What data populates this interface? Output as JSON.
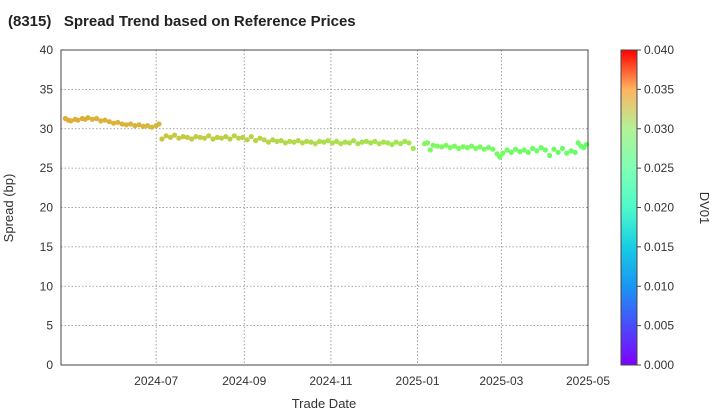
{
  "chart_data": {
    "type": "scatter",
    "title": "(8315)   Spread Trend based on Reference Prices",
    "xlabel": "Trade Date",
    "ylabel": "Spread (bp)",
    "colorbar_label": "DV01",
    "ylim": [
      0,
      40
    ],
    "yticks": [
      "0",
      "5",
      "10",
      "15",
      "20",
      "25",
      "30",
      "35",
      "40"
    ],
    "xrange": [
      "2024-04-25",
      "2025-05-01"
    ],
    "xticks": [
      "2024-07",
      "2024-09",
      "2024-11",
      "2025-01",
      "2025-03",
      "2025-05"
    ],
    "colorbar_range": [
      0.0,
      0.04
    ],
    "colorbar_ticks": [
      "0.000",
      "0.005",
      "0.010",
      "0.015",
      "0.020",
      "0.025",
      "0.030",
      "0.035",
      "0.040"
    ],
    "grid": true,
    "series": [
      {
        "name": "Spread",
        "points": [
          [
            "2024-04-28",
            31.3,
            0.0305
          ],
          [
            "2024-04-30",
            31.1,
            0.0305
          ],
          [
            "2024-05-02",
            31.0,
            0.0305
          ],
          [
            "2024-05-05",
            31.2,
            0.0305
          ],
          [
            "2024-05-07",
            31.1,
            0.0304
          ],
          [
            "2024-05-10",
            31.3,
            0.0304
          ],
          [
            "2024-05-12",
            31.2,
            0.0304
          ],
          [
            "2024-05-14",
            31.4,
            0.0304
          ],
          [
            "2024-05-17",
            31.2,
            0.0303
          ],
          [
            "2024-05-20",
            31.3,
            0.0303
          ],
          [
            "2024-05-23",
            31.0,
            0.0303
          ],
          [
            "2024-05-26",
            31.1,
            0.0302
          ],
          [
            "2024-05-29",
            30.9,
            0.0302
          ],
          [
            "2024-06-01",
            30.7,
            0.0302
          ],
          [
            "2024-06-04",
            30.8,
            0.0301
          ],
          [
            "2024-06-07",
            30.6,
            0.0301
          ],
          [
            "2024-06-10",
            30.5,
            0.0301
          ],
          [
            "2024-06-13",
            30.6,
            0.03
          ],
          [
            "2024-06-16",
            30.4,
            0.03
          ],
          [
            "2024-06-19",
            30.5,
            0.03
          ],
          [
            "2024-06-22",
            30.3,
            0.0299
          ],
          [
            "2024-06-25",
            30.4,
            0.0299
          ],
          [
            "2024-06-28",
            30.2,
            0.0299
          ],
          [
            "2024-07-01",
            30.4,
            0.0298
          ],
          [
            "2024-07-03",
            30.6,
            0.0298
          ],
          [
            "2024-07-05",
            28.7,
            0.0286
          ],
          [
            "2024-07-08",
            29.1,
            0.0286
          ],
          [
            "2024-07-11",
            28.9,
            0.0285
          ],
          [
            "2024-07-14",
            29.2,
            0.0285
          ],
          [
            "2024-07-17",
            28.8,
            0.0284
          ],
          [
            "2024-07-20",
            29.0,
            0.0284
          ],
          [
            "2024-07-23",
            28.9,
            0.0283
          ],
          [
            "2024-07-26",
            28.7,
            0.0283
          ],
          [
            "2024-07-29",
            29.0,
            0.0282
          ],
          [
            "2024-08-01",
            28.9,
            0.0282
          ],
          [
            "2024-08-04",
            28.8,
            0.0281
          ],
          [
            "2024-08-07",
            29.1,
            0.0281
          ],
          [
            "2024-08-10",
            28.7,
            0.028
          ],
          [
            "2024-08-13",
            28.9,
            0.028
          ],
          [
            "2024-08-16",
            28.8,
            0.0279
          ],
          [
            "2024-08-19",
            29.0,
            0.0279
          ],
          [
            "2024-08-22",
            28.7,
            0.0278
          ],
          [
            "2024-08-25",
            29.1,
            0.0278
          ],
          [
            "2024-08-28",
            28.8,
            0.0277
          ],
          [
            "2024-08-31",
            28.9,
            0.0277
          ],
          [
            "2024-09-03",
            28.6,
            0.0276
          ],
          [
            "2024-09-06",
            29.0,
            0.0276
          ],
          [
            "2024-09-09",
            28.5,
            0.0275
          ],
          [
            "2024-09-12",
            28.8,
            0.0275
          ],
          [
            "2024-09-15",
            28.6,
            0.0274
          ],
          [
            "2024-09-18",
            28.3,
            0.0274
          ],
          [
            "2024-09-21",
            28.6,
            0.0273
          ],
          [
            "2024-09-24",
            28.4,
            0.0273
          ],
          [
            "2024-09-27",
            28.5,
            0.0272
          ],
          [
            "2024-09-30",
            28.2,
            0.0272
          ],
          [
            "2024-10-03",
            28.4,
            0.0271
          ],
          [
            "2024-10-06",
            28.3,
            0.0271
          ],
          [
            "2024-10-09",
            28.5,
            0.027
          ],
          [
            "2024-10-12",
            28.2,
            0.027
          ],
          [
            "2024-10-15",
            28.4,
            0.0269
          ],
          [
            "2024-10-18",
            28.3,
            0.0269
          ],
          [
            "2024-10-21",
            28.1,
            0.0268
          ],
          [
            "2024-10-24",
            28.4,
            0.0268
          ],
          [
            "2024-10-27",
            28.3,
            0.0267
          ],
          [
            "2024-10-30",
            28.5,
            0.0267
          ],
          [
            "2024-11-02",
            28.2,
            0.0266
          ],
          [
            "2024-11-05",
            28.4,
            0.0266
          ],
          [
            "2024-11-08",
            28.1,
            0.0265
          ],
          [
            "2024-11-11",
            28.3,
            0.0265
          ],
          [
            "2024-11-14",
            28.2,
            0.0264
          ],
          [
            "2024-11-17",
            28.5,
            0.0264
          ],
          [
            "2024-11-20",
            28.1,
            0.0263
          ],
          [
            "2024-11-23",
            28.3,
            0.0263
          ],
          [
            "2024-11-26",
            28.4,
            0.0262
          ],
          [
            "2024-11-29",
            28.2,
            0.0262
          ],
          [
            "2024-12-02",
            28.4,
            0.0261
          ],
          [
            "2024-12-05",
            28.1,
            0.0261
          ],
          [
            "2024-12-08",
            28.3,
            0.026
          ],
          [
            "2024-12-11",
            28.2,
            0.026
          ],
          [
            "2024-12-14",
            28.0,
            0.0259
          ],
          [
            "2024-12-17",
            28.3,
            0.0259
          ],
          [
            "2024-12-20",
            28.1,
            0.0258
          ],
          [
            "2024-12-23",
            28.4,
            0.0258
          ],
          [
            "2024-12-26",
            28.2,
            0.0257
          ],
          [
            "2024-12-29",
            27.5,
            0.0257
          ],
          [
            "2025-01-06",
            28.1,
            0.023
          ],
          [
            "2025-01-08",
            28.2,
            0.023
          ],
          [
            "2025-01-10",
            27.3,
            0.0229
          ],
          [
            "2025-01-12",
            27.9,
            0.0229
          ],
          [
            "2025-01-15",
            27.8,
            0.0228
          ],
          [
            "2025-01-18",
            27.7,
            0.0228
          ],
          [
            "2025-01-21",
            27.9,
            0.0227
          ],
          [
            "2025-01-24",
            27.6,
            0.0227
          ],
          [
            "2025-01-27",
            27.8,
            0.0226
          ],
          [
            "2025-01-30",
            27.5,
            0.0226
          ],
          [
            "2025-02-02",
            27.7,
            0.0225
          ],
          [
            "2025-02-05",
            27.6,
            0.0225
          ],
          [
            "2025-02-08",
            27.8,
            0.0224
          ],
          [
            "2025-02-11",
            27.5,
            0.0224
          ],
          [
            "2025-02-14",
            27.7,
            0.0223
          ],
          [
            "2025-02-17",
            27.4,
            0.0223
          ],
          [
            "2025-02-20",
            27.6,
            0.0222
          ],
          [
            "2025-02-23",
            27.4,
            0.0222
          ],
          [
            "2025-02-26",
            26.8,
            0.0221
          ],
          [
            "2025-02-28",
            26.4,
            0.0221
          ],
          [
            "2025-03-02",
            26.9,
            0.022
          ],
          [
            "2025-03-05",
            27.3,
            0.022
          ],
          [
            "2025-03-08",
            27.0,
            0.0219
          ],
          [
            "2025-03-11",
            27.4,
            0.0219
          ],
          [
            "2025-03-14",
            27.1,
            0.0218
          ],
          [
            "2025-03-17",
            27.3,
            0.0218
          ],
          [
            "2025-03-20",
            27.0,
            0.0217
          ],
          [
            "2025-03-23",
            27.5,
            0.0217
          ],
          [
            "2025-03-26",
            27.2,
            0.0216
          ],
          [
            "2025-03-29",
            27.6,
            0.0216
          ],
          [
            "2025-04-01",
            27.3,
            0.0215
          ],
          [
            "2025-04-04",
            26.6,
            0.0215
          ],
          [
            "2025-04-07",
            27.4,
            0.0214
          ],
          [
            "2025-04-10",
            27.0,
            0.0214
          ],
          [
            "2025-04-13",
            27.5,
            0.0213
          ],
          [
            "2025-04-16",
            26.9,
            0.0213
          ],
          [
            "2025-04-19",
            27.2,
            0.0212
          ],
          [
            "2025-04-22",
            27.0,
            0.0212
          ],
          [
            "2025-04-24",
            28.2,
            0.0211
          ],
          [
            "2025-04-26",
            27.8,
            0.0211
          ],
          [
            "2025-04-28",
            27.6,
            0.021
          ],
          [
            "2025-04-30",
            28.0,
            0.021
          ]
        ]
      }
    ]
  }
}
